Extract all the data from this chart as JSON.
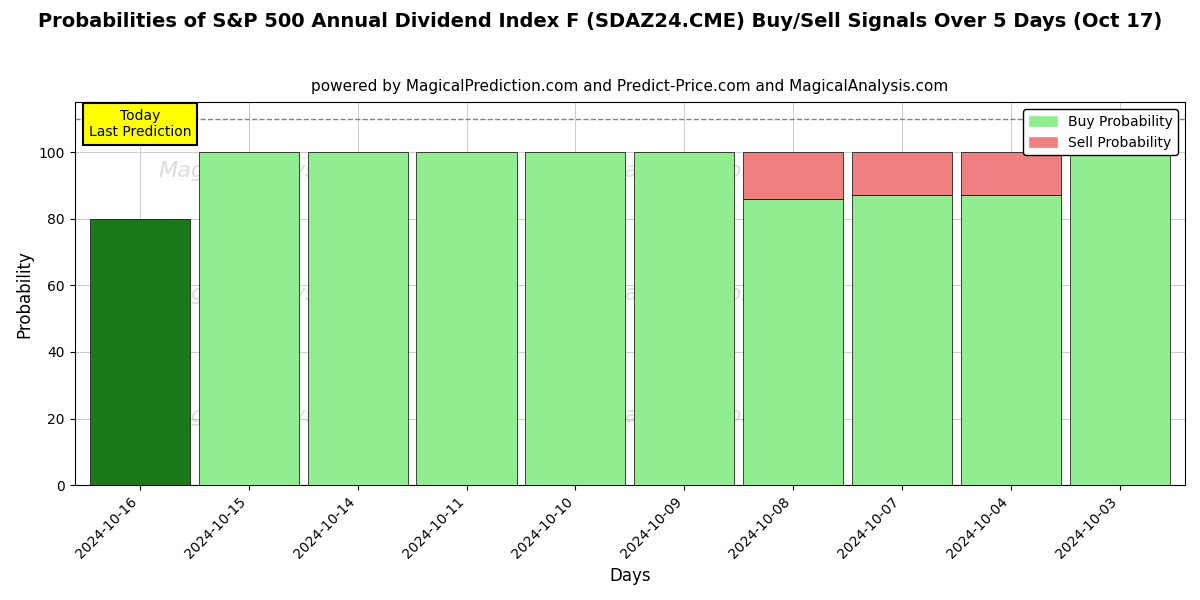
{
  "title": "Probabilities of S&P 500 Annual Dividend Index F (SDAZ24.CME) Buy/Sell Signals Over 5 Days (Oct 17)",
  "subtitle": "powered by MagicalPrediction.com and Predict-Price.com and MagicalAnalysis.com",
  "xlabel": "Days",
  "ylabel": "Probability",
  "dates": [
    "2024-10-16",
    "2024-10-15",
    "2024-10-14",
    "2024-10-11",
    "2024-10-10",
    "2024-10-09",
    "2024-10-08",
    "2024-10-07",
    "2024-10-04",
    "2024-10-03"
  ],
  "buy_probs": [
    80,
    100,
    100,
    100,
    100,
    100,
    86,
    87,
    87,
    100
  ],
  "sell_probs": [
    0,
    0,
    0,
    0,
    0,
    0,
    14,
    13,
    13,
    0
  ],
  "today_bar_color": "#1a7a1a",
  "buy_color": "#90EE90",
  "sell_color": "#F08080",
  "today_annotation_bg": "#FFFF00",
  "today_annotation_text": "Today\nLast Prediction",
  "ylim": [
    0,
    115
  ],
  "dashed_line_y": 110,
  "title_fontsize": 14,
  "subtitle_fontsize": 11,
  "axis_label_fontsize": 12,
  "tick_fontsize": 10,
  "legend_fontsize": 10,
  "background_color": "#ffffff",
  "grid_color": "#cccccc"
}
